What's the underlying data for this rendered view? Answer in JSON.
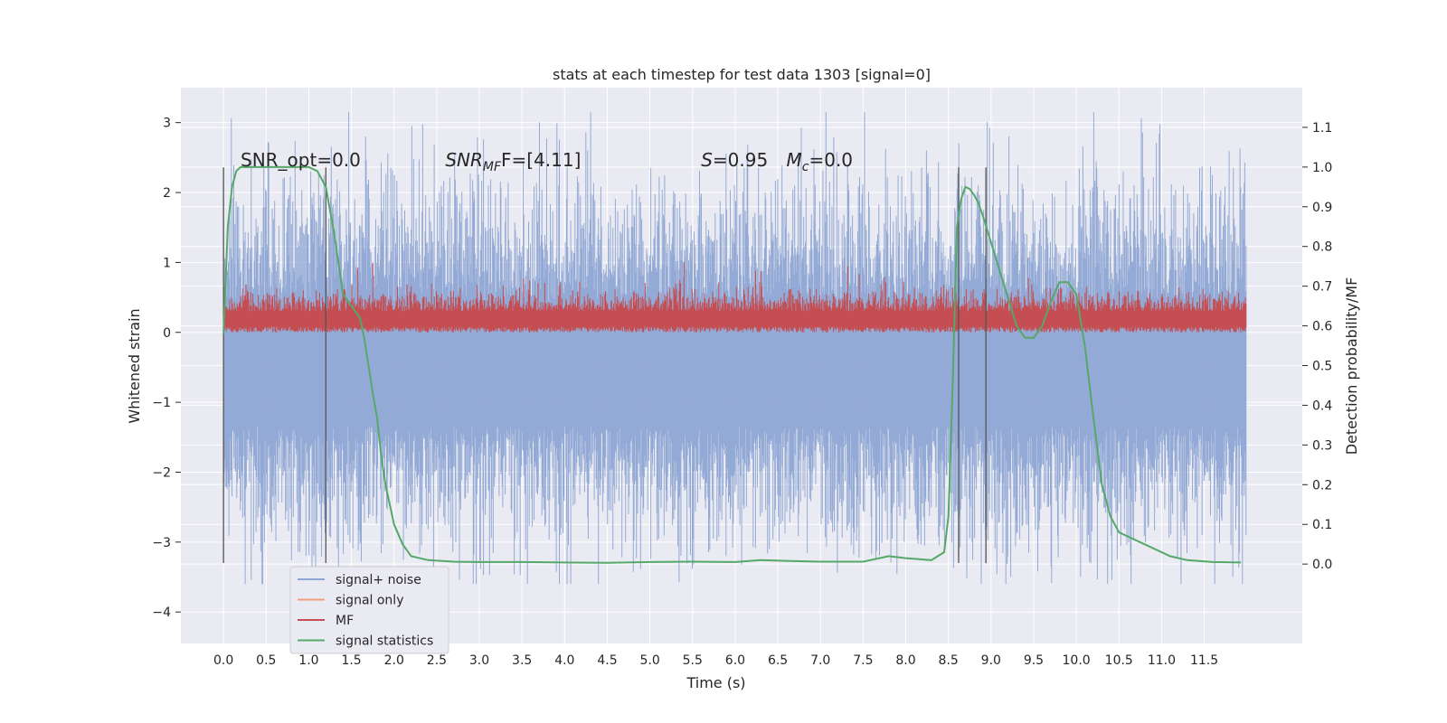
{
  "chart_data": {
    "type": "line",
    "title": "stats at each timestep for test data 1303 [signal=0]",
    "xlabel": "Time (s)",
    "ylabel_left": "Whitened strain",
    "ylabel_right": "Detection probability/MF",
    "xlim": [
      -0.5,
      12.65
    ],
    "ylim_left": [
      -4.45,
      3.5
    ],
    "ylim_right": [
      -0.2,
      1.2
    ],
    "x_ticks": [
      "0.0",
      "0.5",
      "1.0",
      "1.5",
      "2.0",
      "2.5",
      "3.0",
      "3.5",
      "4.0",
      "4.5",
      "5.0",
      "5.5",
      "6.0",
      "6.5",
      "7.0",
      "7.5",
      "8.0",
      "8.5",
      "9.0",
      "9.5",
      "10.0",
      "10.5",
      "11.0",
      "11.5"
    ],
    "y_ticks_left": [
      "3",
      "2",
      "1",
      "0",
      "−1",
      "−2",
      "−3",
      "−4"
    ],
    "y_ticks_right": [
      "1.1",
      "1.0",
      "0.9",
      "0.8",
      "0.7",
      "0.6",
      "0.5",
      "0.4",
      "0.3",
      "0.2",
      "0.1",
      "0.0"
    ],
    "grid": true,
    "legend_position": "lower-left",
    "annotations": [
      {
        "text": "SNR_opt=0.0",
        "x": 0.2
      },
      {
        "text_main": "SNR",
        "text_sub": "MF",
        "text_rest": "F=[4.11]",
        "x": 2.6
      },
      {
        "text_main": "S",
        "text_rest": "=0.95",
        "x": 5.6
      },
      {
        "text_main": "M",
        "text_sub": "c",
        "text_rest": "=0.0",
        "x": 6.6
      }
    ],
    "vertical_lines": [
      0.0,
      1.2,
      8.62,
      8.94
    ],
    "series": [
      {
        "name": "signal+ noise",
        "color": "#8fa6d4",
        "description_stats": {
          "x_start": 0.0,
          "x_end": 11.99,
          "center": -0.45,
          "upper_typical": 1.5,
          "lower_typical": -2.4,
          "max": 3.15,
          "min": -3.6
        }
      },
      {
        "name": "signal only",
        "color": "#f0a080",
        "values_note": "flat at 0"
      },
      {
        "name": "MF",
        "color": "#c44e52",
        "description_stats": {
          "x_start": 0.0,
          "x_end": 11.99,
          "base": 0.0,
          "typical_top": 0.55,
          "max": 1.0
        }
      },
      {
        "name": "signal statistics",
        "color": "#55a868",
        "axis": "right",
        "x": [
          0.0,
          0.05,
          0.1,
          0.15,
          0.2,
          0.3,
          0.5,
          0.8,
          1.0,
          1.1,
          1.2,
          1.3,
          1.4,
          1.5,
          1.6,
          1.65,
          1.7,
          1.75,
          1.8,
          1.85,
          1.9,
          2.0,
          2.1,
          2.2,
          2.4,
          2.7,
          3.0,
          3.5,
          4.0,
          4.5,
          5.0,
          5.5,
          6.0,
          6.3,
          6.6,
          7.0,
          7.5,
          7.8,
          8.0,
          8.3,
          8.45,
          8.5,
          8.55,
          8.6,
          8.65,
          8.7,
          8.75,
          8.8,
          8.85,
          8.9,
          9.0,
          9.2,
          9.3,
          9.4,
          9.5,
          9.6,
          9.7,
          9.8,
          9.9,
          10.0,
          10.1,
          10.2,
          10.3,
          10.4,
          10.5,
          10.7,
          10.9,
          11.1,
          11.3,
          11.6,
          11.93
        ],
        "values": [
          0.58,
          0.85,
          0.95,
          0.99,
          1.0,
          1.0,
          1.0,
          1.0,
          1.0,
          0.99,
          0.95,
          0.83,
          0.68,
          0.65,
          0.62,
          0.57,
          0.5,
          0.43,
          0.37,
          0.27,
          0.2,
          0.1,
          0.05,
          0.02,
          0.01,
          0.006,
          0.005,
          0.005,
          0.004,
          0.003,
          0.005,
          0.006,
          0.005,
          0.01,
          0.008,
          0.006,
          0.006,
          0.02,
          0.015,
          0.01,
          0.03,
          0.12,
          0.45,
          0.85,
          0.92,
          0.95,
          0.945,
          0.93,
          0.91,
          0.88,
          0.81,
          0.67,
          0.6,
          0.57,
          0.57,
          0.6,
          0.66,
          0.71,
          0.71,
          0.68,
          0.55,
          0.37,
          0.2,
          0.12,
          0.08,
          0.06,
          0.04,
          0.02,
          0.01,
          0.005,
          0.004
        ]
      }
    ]
  }
}
